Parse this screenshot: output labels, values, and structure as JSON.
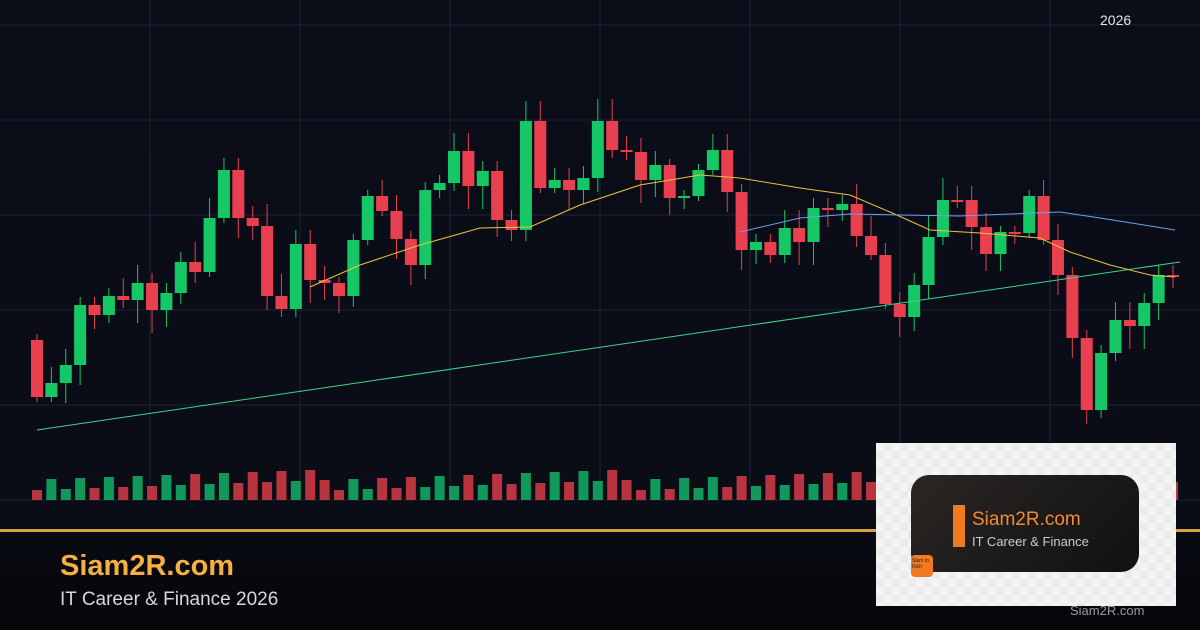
{
  "header": {
    "year": "2026"
  },
  "footer": {
    "brand": "Siam2R.com",
    "subtitle": "IT Career & Finance 2026"
  },
  "logo_card": {
    "title": "Siam2R.com",
    "tagline": "IT Career & Finance",
    "badge": "Siam to Rich"
  },
  "watermark": "Siam2R.com",
  "colors": {
    "up": "#16c766",
    "down": "#e8404f",
    "ma_fast": "#f0c040",
    "ma_slow": "#6f9ff0",
    "trendline": "#3fd58a",
    "accent": "#d9a040"
  }
}
